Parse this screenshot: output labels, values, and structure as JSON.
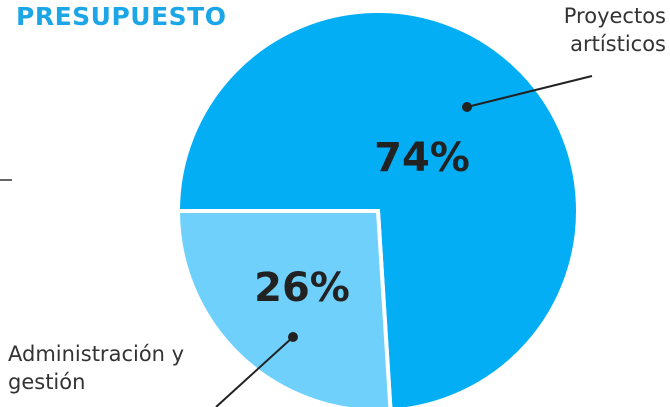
{
  "chart_data": {
    "type": "pie",
    "title": "PRESUPUESTO",
    "categories": [
      "Proyectos artísticos",
      "Administración y gestión"
    ],
    "values": [
      74,
      26
    ],
    "value_labels": [
      "74%",
      "26%"
    ],
    "colors": [
      "#03aef5",
      "#6fd1fb"
    ],
    "start_angle": 270
  }
}
